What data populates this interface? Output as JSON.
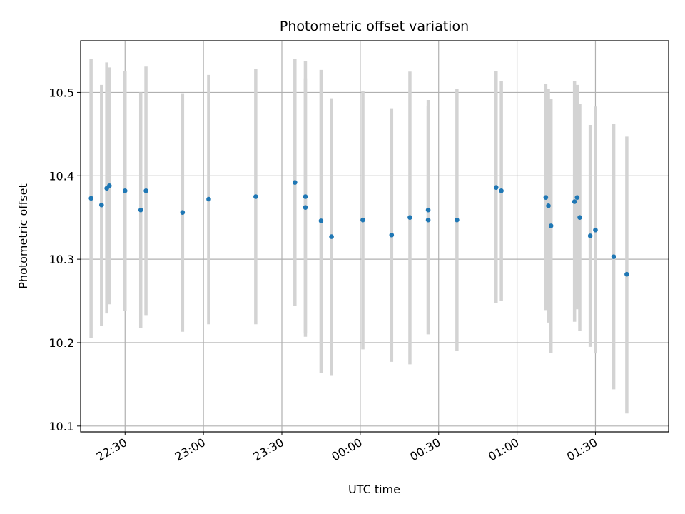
{
  "chart_data": {
    "type": "scatter",
    "title": "Photometric offset variation",
    "xlabel": "UTC time",
    "ylabel": "Photometric offset",
    "grid": true,
    "xlim": [
      "22:13",
      "01:58"
    ],
    "ylim": [
      10.093,
      10.562
    ],
    "xticks": [
      "22:30",
      "23:00",
      "23:30",
      "00:00",
      "00:30",
      "01:00",
      "01:30"
    ],
    "yticks": [
      10.1,
      10.2,
      10.3,
      10.4,
      10.5
    ],
    "colors": {
      "points": "#1f77b4",
      "error_bars": "#d3d3d3"
    },
    "points": [
      {
        "x": "22:17",
        "y": 10.373,
        "lo": 10.206,
        "hi": 10.54
      },
      {
        "x": "22:21",
        "y": 10.365,
        "lo": 10.22,
        "hi": 10.509
      },
      {
        "x": "22:23",
        "y": 10.385,
        "lo": 10.235,
        "hi": 10.536
      },
      {
        "x": "22:24",
        "y": 10.388,
        "lo": 10.246,
        "hi": 10.53
      },
      {
        "x": "22:30",
        "y": 10.382,
        "lo": 10.238,
        "hi": 10.526
      },
      {
        "x": "22:36",
        "y": 10.359,
        "lo": 10.218,
        "hi": 10.5
      },
      {
        "x": "22:38",
        "y": 10.382,
        "lo": 10.233,
        "hi": 10.531
      },
      {
        "x": "22:52",
        "y": 10.356,
        "lo": 10.213,
        "hi": 10.499
      },
      {
        "x": "23:02",
        "y": 10.372,
        "lo": 10.222,
        "hi": 10.521
      },
      {
        "x": "23:20",
        "y": 10.375,
        "lo": 10.222,
        "hi": 10.528
      },
      {
        "x": "23:35",
        "y": 10.392,
        "lo": 10.244,
        "hi": 10.54
      },
      {
        "x": "23:39",
        "y": 10.362,
        "lo": 10.207,
        "hi": 10.517
      },
      {
        "x": "23:39",
        "y": 10.375,
        "lo": 10.211,
        "hi": 10.538
      },
      {
        "x": "23:45",
        "y": 10.346,
        "lo": 10.164,
        "hi": 10.527
      },
      {
        "x": "23:49",
        "y": 10.327,
        "lo": 10.161,
        "hi": 10.493
      },
      {
        "x": "00:01",
        "y": 10.347,
        "lo": 10.192,
        "hi": 10.502
      },
      {
        "x": "00:12",
        "y": 10.329,
        "lo": 10.177,
        "hi": 10.481
      },
      {
        "x": "00:19",
        "y": 10.35,
        "lo": 10.174,
        "hi": 10.525
      },
      {
        "x": "00:26",
        "y": 10.359,
        "lo": 10.21,
        "hi": 10.491
      },
      {
        "x": "00:26",
        "y": 10.347,
        "lo": 10.21,
        "hi": 10.484
      },
      {
        "x": "00:37",
        "y": 10.347,
        "lo": 10.19,
        "hi": 10.504
      },
      {
        "x": "00:52",
        "y": 10.386,
        "lo": 10.247,
        "hi": 10.526
      },
      {
        "x": "00:54",
        "y": 10.382,
        "lo": 10.25,
        "hi": 10.514
      },
      {
        "x": "01:11",
        "y": 10.374,
        "lo": 10.239,
        "hi": 10.51
      },
      {
        "x": "01:12",
        "y": 10.364,
        "lo": 10.224,
        "hi": 10.504
      },
      {
        "x": "01:13",
        "y": 10.34,
        "lo": 10.188,
        "hi": 10.492
      },
      {
        "x": "01:22",
        "y": 10.369,
        "lo": 10.225,
        "hi": 10.514
      },
      {
        "x": "01:23",
        "y": 10.374,
        "lo": 10.24,
        "hi": 10.509
      },
      {
        "x": "01:24",
        "y": 10.35,
        "lo": 10.214,
        "hi": 10.486
      },
      {
        "x": "01:28",
        "y": 10.328,
        "lo": 10.195,
        "hi": 10.461
      },
      {
        "x": "01:30",
        "y": 10.335,
        "lo": 10.187,
        "hi": 10.483
      },
      {
        "x": "01:37",
        "y": 10.303,
        "lo": 10.144,
        "hi": 10.462
      },
      {
        "x": "01:42",
        "y": 10.282,
        "lo": 10.115,
        "hi": 10.447
      }
    ]
  }
}
